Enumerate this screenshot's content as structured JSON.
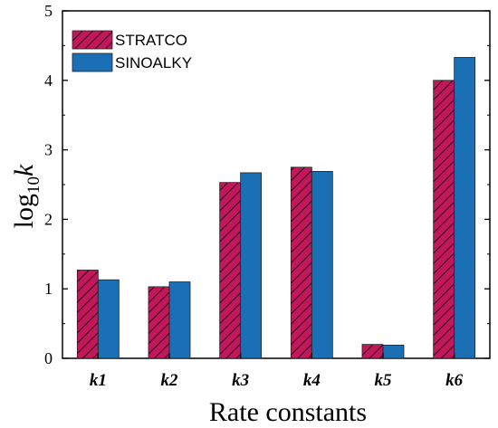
{
  "chart_data": {
    "type": "bar",
    "categories": [
      "k1",
      "k2",
      "k3",
      "k4",
      "k5",
      "k6"
    ],
    "series": [
      {
        "name": "STRATCO",
        "values": [
          1.27,
          1.03,
          2.53,
          2.75,
          0.2,
          4.0
        ],
        "color": "#c2185b",
        "hatch": true
      },
      {
        "name": "SINOALKY",
        "values": [
          1.13,
          1.1,
          2.67,
          2.69,
          0.19,
          4.33
        ],
        "color": "#1a6fb5",
        "hatch": false
      }
    ],
    "xlabel": "Rate constants",
    "ylabel": {
      "base": "log",
      "sub": "10",
      "var": "k"
    },
    "ylim": [
      0,
      5
    ],
    "yticks": [
      "0",
      "1",
      "2",
      "3",
      "4",
      "5"
    ],
    "legend_position": "top-left",
    "grid": false
  }
}
